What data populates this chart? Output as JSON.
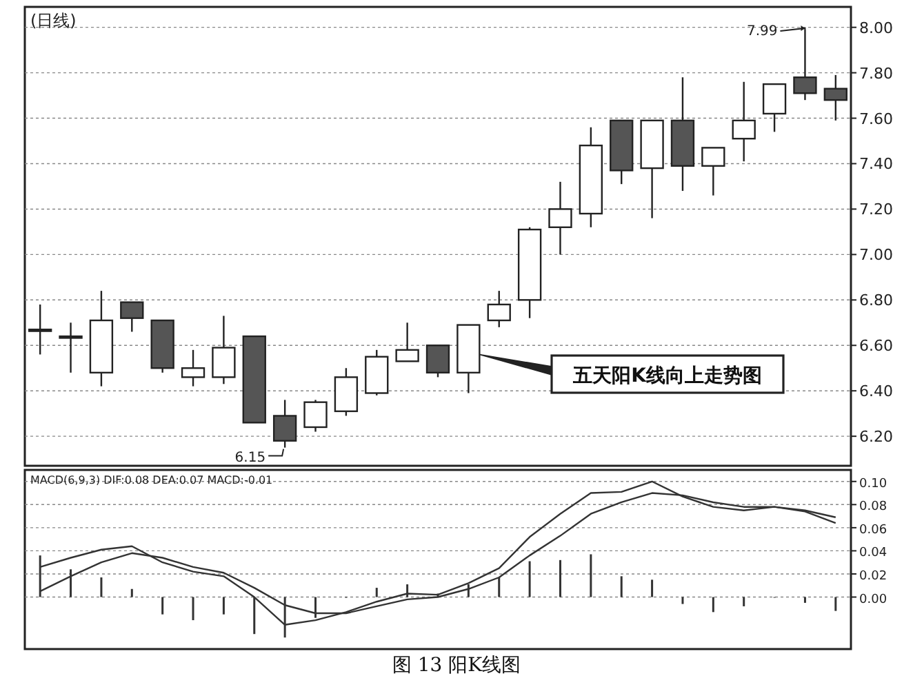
{
  "chart_data": [
    {
      "type": "candlestick",
      "title": "(日线)",
      "categories": [
        null,
        null,
        null,
        null,
        null,
        null,
        null,
        null,
        null,
        null,
        null,
        null,
        null,
        null,
        null,
        null,
        null,
        null,
        null,
        null,
        null,
        null,
        null,
        null,
        null,
        null,
        null
      ],
      "ohlc": [
        [
          6.67,
          6.78,
          6.56,
          6.67
        ],
        [
          6.64,
          6.7,
          6.48,
          6.64
        ],
        [
          6.48,
          6.84,
          6.42,
          6.71
        ],
        [
          6.79,
          6.79,
          6.66,
          6.72
        ],
        [
          6.71,
          6.71,
          6.48,
          6.5
        ],
        [
          6.46,
          6.58,
          6.42,
          6.5
        ],
        [
          6.46,
          6.73,
          6.43,
          6.59
        ],
        [
          6.64,
          6.64,
          6.26,
          6.26
        ],
        [
          6.29,
          6.36,
          6.15,
          6.18
        ],
        [
          6.24,
          6.36,
          6.22,
          6.35
        ],
        [
          6.31,
          6.5,
          6.29,
          6.46
        ],
        [
          6.39,
          6.58,
          6.38,
          6.55
        ],
        [
          6.53,
          6.7,
          6.53,
          6.58
        ],
        [
          6.6,
          6.6,
          6.46,
          6.48
        ],
        [
          6.48,
          6.69,
          6.39,
          6.69
        ],
        [
          6.71,
          6.84,
          6.68,
          6.78
        ],
        [
          6.8,
          7.12,
          6.72,
          7.11
        ],
        [
          7.12,
          7.32,
          7.0,
          7.2
        ],
        [
          7.18,
          7.56,
          7.12,
          7.48
        ],
        [
          7.59,
          7.59,
          7.31,
          7.37
        ],
        [
          7.38,
          7.59,
          7.16,
          7.59
        ],
        [
          7.59,
          7.78,
          7.28,
          7.39
        ],
        [
          7.39,
          7.47,
          7.26,
          7.47
        ],
        [
          7.51,
          7.76,
          7.41,
          7.59
        ],
        [
          7.62,
          7.75,
          7.54,
          7.75
        ],
        [
          7.78,
          7.99,
          7.68,
          7.71
        ],
        [
          7.73,
          7.79,
          7.59,
          7.68
        ]
      ],
      "colors": [
        "#ffffff",
        "#ffffff",
        "#ffffff",
        "#555555",
        "#555555",
        "#ffffff",
        "#ffffff",
        "#555555",
        "#555555",
        "#ffffff",
        "#ffffff",
        "#ffffff",
        "#ffffff",
        "#555555",
        "#ffffff",
        "#ffffff",
        "#ffffff",
        "#ffffff",
        "#ffffff",
        "#555555",
        "#ffffff",
        "#555555",
        "#ffffff",
        "#ffffff",
        "#ffffff",
        "#555555",
        "#555555"
      ],
      "ylim": [
        6.07,
        8.09
      ],
      "yticks": [
        {
          "value": 6.2,
          "label": "6.20"
        },
        {
          "value": 6.4,
          "label": "6.40"
        },
        {
          "value": 6.6,
          "label": "6.60"
        },
        {
          "value": 6.8,
          "label": "6.80"
        },
        {
          "value": 7.0,
          "label": "7.00"
        },
        {
          "value": 7.2,
          "label": "7.20"
        },
        {
          "value": 7.4,
          "label": "7.40"
        },
        {
          "value": 7.6,
          "label": "7.60"
        },
        {
          "value": 7.8,
          "label": "7.80"
        },
        {
          "value": 8.0,
          "label": "8.00"
        }
      ],
      "grid": "y",
      "annotations": [
        "7.99",
        "6.15",
        "五天阳K线向上走势图"
      ]
    },
    {
      "type": "bar",
      "title": "MACD(6,9,3) DIF:0.08 DEA:0.07 MACD:-0.01",
      "categories": [
        null,
        null,
        null,
        null,
        null,
        null,
        null,
        null,
        null,
        null,
        null,
        null,
        null,
        null,
        null,
        null,
        null,
        null,
        null,
        null,
        null,
        null,
        null,
        null,
        null,
        null,
        null
      ],
      "series": [
        {
          "type": "bar",
          "color": "#333333",
          "values": [
            0.036,
            0.024,
            0.017,
            0.007,
            -0.015,
            -0.02,
            -0.015,
            -0.032,
            -0.035,
            -0.018,
            0,
            0.008,
            0.011,
            0.003,
            0.011,
            0.017,
            0.031,
            0.032,
            0.037,
            0.018,
            0.015,
            -0.006,
            -0.013,
            -0.008,
            0,
            -0.005,
            -0.012
          ]
        },
        {
          "type": "line",
          "color": "#333333",
          "values": [
            0.026,
            0.034,
            0.041,
            0.044,
            0.03,
            0.022,
            0.018,
            0.0,
            -0.024,
            -0.02,
            -0.013,
            -0.004,
            0.003,
            0.002,
            0.012,
            0.025,
            0.052,
            0.072,
            0.09,
            0.091,
            0.1,
            0.087,
            0.078,
            0.075,
            0.078,
            0.074,
            0.064
          ]
        },
        {
          "type": "line",
          "color": "#333333",
          "values": [
            0.005,
            0.018,
            0.03,
            0.038,
            0.034,
            0.026,
            0.021,
            0.008,
            -0.007,
            -0.014,
            -0.014,
            -0.008,
            -0.002,
            0.0,
            0.007,
            0.017,
            0.036,
            0.053,
            0.072,
            0.082,
            0.09,
            0.088,
            0.082,
            0.078,
            0.078,
            0.075,
            0.069
          ]
        }
      ],
      "ylim": [
        -0.045,
        0.11
      ],
      "yticks": [
        {
          "value": 0,
          "label": "0.00"
        },
        {
          "value": 0.02,
          "label": "0.02"
        },
        {
          "value": 0.04,
          "label": "0.04"
        },
        {
          "value": 0.06,
          "label": "0.06"
        },
        {
          "value": 0.08,
          "label": "0.08"
        },
        {
          "value": 0.1,
          "label": "0.10"
        }
      ],
      "grid": "y",
      "annotations": [
        "图 13 阳K线图"
      ]
    }
  ]
}
